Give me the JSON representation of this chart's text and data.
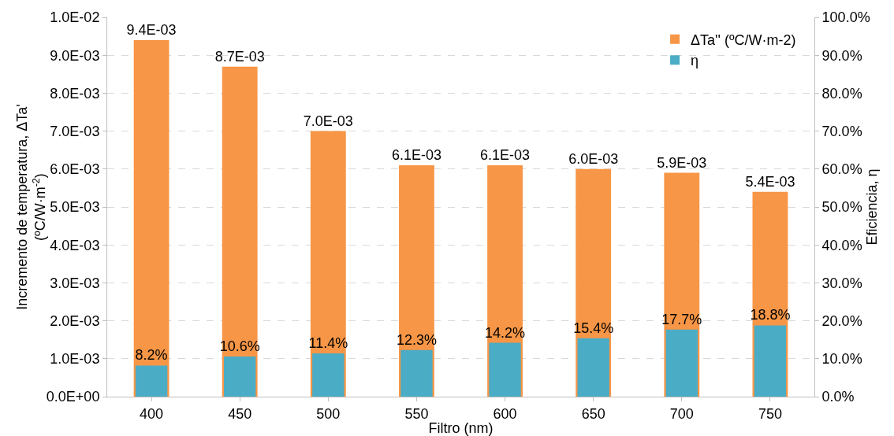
{
  "chart_data": {
    "type": "bar",
    "xlabel": "Filtro (nm)",
    "ylabel": "Incremento de temperatura, ΔTa'\n(ºC/W·m$^{-2}$)",
    "y2label": "Eficiencia, η",
    "categories": [
      "400",
      "450",
      "500",
      "550",
      "600",
      "650",
      "700",
      "750"
    ],
    "series": [
      {
        "name": "ΔTa'' (ºC/W·m-2)",
        "color": "#f79646",
        "values": [
          0.0094,
          0.0087,
          0.007,
          0.0061,
          0.0061,
          0.006,
          0.0059,
          0.0054
        ],
        "value_labels": [
          "9.4E-03",
          "8.7E-03",
          "7.0E-03",
          "6.1E-03",
          "6.1E-03",
          "6.0E-03",
          "5.9E-03",
          "5.4E-03"
        ]
      },
      {
        "name": "η",
        "color": "#4bacc6",
        "axis": "y2",
        "values": [
          8.2,
          10.6,
          11.4,
          12.3,
          14.2,
          15.4,
          17.7,
          18.8
        ],
        "value_labels": [
          "8.2%",
          "10.6%",
          "11.4%",
          "12.3%",
          "14.2%",
          "15.4%",
          "17.7%",
          "18.8%"
        ]
      }
    ],
    "ylim": [
      0,
      0.01
    ],
    "yticks": [
      {
        "value": 0,
        "label": "0.0E+00"
      },
      {
        "value": 0.001,
        "label": "1.0E-03"
      },
      {
        "value": 0.002,
        "label": "2.0E-03"
      },
      {
        "value": 0.003,
        "label": "3.0E-03"
      },
      {
        "value": 0.004,
        "label": "4.0E-03"
      },
      {
        "value": 0.005,
        "label": "5.0E-03"
      },
      {
        "value": 0.006,
        "label": "6.0E-03"
      },
      {
        "value": 0.007,
        "label": "7.0E-03"
      },
      {
        "value": 0.008,
        "label": "8.0E-03"
      },
      {
        "value": 0.009,
        "label": "9.0E-03"
      },
      {
        "value": 0.01,
        "label": "1.0E-02"
      }
    ],
    "y2lim": [
      0,
      100
    ],
    "y2ticks": [
      {
        "value": 0,
        "label": "0.0%"
      },
      {
        "value": 10,
        "label": "10.0%"
      },
      {
        "value": 20,
        "label": "20.0%"
      },
      {
        "value": 30,
        "label": "30.0%"
      },
      {
        "value": 40,
        "label": "40.0%"
      },
      {
        "value": 50,
        "label": "50.0%"
      },
      {
        "value": 60,
        "label": "60.0%"
      },
      {
        "value": 70,
        "label": "70.0%"
      },
      {
        "value": 80,
        "label": "80.0%"
      },
      {
        "value": 90,
        "label": "90.0%"
      },
      {
        "value": 100,
        "label": "100.0%"
      }
    ],
    "grid": "y",
    "legend": "top right"
  }
}
